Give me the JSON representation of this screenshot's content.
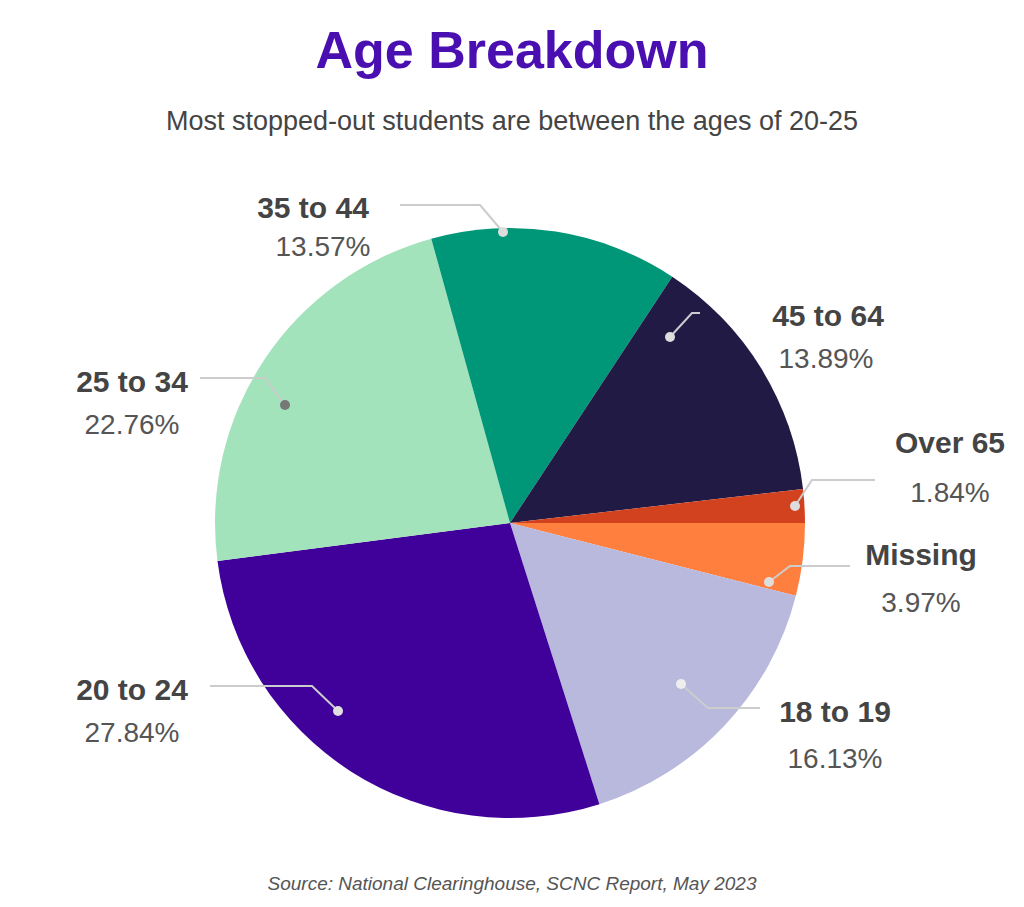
{
  "chart_data": {
    "type": "pie",
    "title": "Age Breakdown",
    "subtitle": "Most stopped-out students are between the ages of 20-25",
    "source": "Source: National Clearinghouse, SCNC Report, May 2023",
    "categories": [
      "Missing",
      "18 to 19",
      "20 to 24",
      "25 to 34",
      "35 to 44",
      "45 to 64",
      "Over 65"
    ],
    "values": [
      3.97,
      16.13,
      27.84,
      22.76,
      13.57,
      13.89,
      1.84
    ],
    "value_labels": [
      "3.97%",
      "16.13%",
      "27.84%",
      "22.76%",
      "13.57%",
      "13.89%",
      "1.84%"
    ],
    "colors": [
      "#ff7f3f",
      "#b8b9dd",
      "#40009a",
      "#a2e3bb",
      "#009678",
      "#211a44",
      "#d3421f"
    ],
    "data_labels": true
  }
}
